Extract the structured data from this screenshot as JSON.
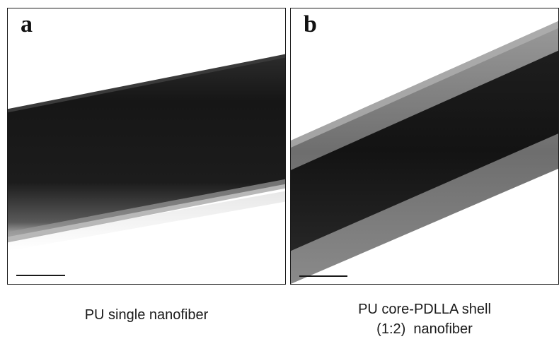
{
  "panels": [
    {
      "letter": "a",
      "caption": "PU single nanofiber",
      "image": "TEM micrograph of a solid dark nanofiber crossing diagonally"
    },
    {
      "letter": "b",
      "caption_line1": "PU core-PDLLA shell",
      "caption_line2": "(1:2)  nanofiber",
      "image": "TEM micrograph of a core-shell nanofiber with a dark core and lighter grey shell"
    }
  ],
  "colors": {
    "fiber_core": "#161616",
    "fiber_shell": "#7a7a7a",
    "background": "#ffffff",
    "frame": "#1a1a1a"
  }
}
